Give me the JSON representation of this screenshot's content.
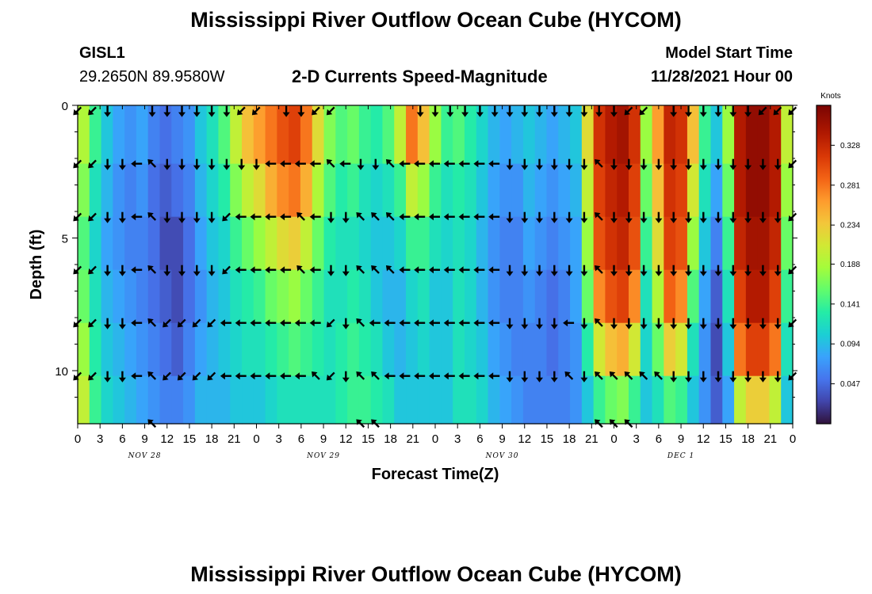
{
  "page": {
    "title": "Mississippi River Outflow Ocean Cube (HYCOM)",
    "title_repeat": "Mississippi River Outflow Ocean Cube (HYCOM)",
    "station_id": "GISL1",
    "coordinates": "29.2650N  89.9580W",
    "model_start_label": "Model Start Time",
    "model_start_value": "11/28/2021 Hour 00"
  },
  "chart_data": {
    "type": "heatmap",
    "title": "2-D Currents Speed-Magnitude",
    "xlabel": "Forecast Time(Z)",
    "ylabel": "Depth (ft)",
    "colorbar_label": "Knots",
    "colorbar_ticks": [
      "0.047",
      "0.094",
      "0.141",
      "0.188",
      "0.234",
      "0.281",
      "0.328"
    ],
    "colorbar_range": [
      0.0,
      0.375
    ],
    "x_tick_labels": [
      "0",
      "3",
      "6",
      "9",
      "12",
      "15",
      "18",
      "21",
      "0",
      "3",
      "6",
      "9",
      "12",
      "15",
      "18",
      "21",
      "0",
      "3",
      "6",
      "9",
      "12",
      "15",
      "18",
      "21",
      "0",
      "3",
      "6",
      "9",
      "12",
      "15",
      "18",
      "21",
      "0"
    ],
    "x_date_labels": [
      {
        "label": "NOV 28",
        "hour": 9
      },
      {
        "label": "NOV 29",
        "hour": 33
      },
      {
        "label": "NOV 30",
        "hour": 57
      },
      {
        "label": "DEC 1",
        "hour": 81
      }
    ],
    "xlim_hours": [
      0,
      96
    ],
    "y_tick_labels": [
      "0",
      "5",
      "10"
    ],
    "ylim_ft": [
      0,
      12
    ],
    "depth_levels_ft": [
      0,
      2.2,
      4.2,
      6.2,
      8.2,
      10.2,
      12
    ],
    "speed_knots": [
      [
        0.19,
        0.17,
        0.15,
        0.16,
        0.18,
        0.2
      ],
      [
        0.14,
        0.12,
        0.11,
        0.12,
        0.13,
        0.14
      ],
      [
        0.1,
        0.09,
        0.08,
        0.09,
        0.1,
        0.11
      ],
      [
        0.08,
        0.07,
        0.07,
        0.08,
        0.09,
        0.1
      ],
      [
        0.07,
        0.06,
        0.06,
        0.07,
        0.08,
        0.09
      ],
      [
        0.08,
        0.07,
        0.06,
        0.06,
        0.07,
        0.08
      ],
      [
        0.06,
        0.05,
        0.05,
        0.05,
        0.06,
        0.07
      ],
      [
        0.05,
        0.04,
        0.03,
        0.04,
        0.05,
        0.06
      ],
      [
        0.06,
        0.05,
        0.03,
        0.03,
        0.04,
        0.06
      ],
      [
        0.07,
        0.06,
        0.05,
        0.05,
        0.06,
        0.07
      ],
      [
        0.1,
        0.09,
        0.08,
        0.07,
        0.08,
        0.09
      ],
      [
        0.12,
        0.11,
        0.1,
        0.09,
        0.09,
        0.09
      ],
      [
        0.15,
        0.13,
        0.11,
        0.1,
        0.1,
        0.09
      ],
      [
        0.2,
        0.17,
        0.14,
        0.12,
        0.11,
        0.1
      ],
      [
        0.24,
        0.2,
        0.16,
        0.13,
        0.12,
        0.1
      ],
      [
        0.26,
        0.22,
        0.18,
        0.14,
        0.12,
        0.1
      ],
      [
        0.28,
        0.25,
        0.2,
        0.16,
        0.13,
        0.11
      ],
      [
        0.3,
        0.27,
        0.22,
        0.17,
        0.14,
        0.12
      ],
      [
        0.31,
        0.28,
        0.23,
        0.18,
        0.15,
        0.12
      ],
      [
        0.28,
        0.25,
        0.2,
        0.16,
        0.14,
        0.12
      ],
      [
        0.22,
        0.19,
        0.16,
        0.14,
        0.13,
        0.12
      ],
      [
        0.17,
        0.15,
        0.13,
        0.12,
        0.12,
        0.12
      ],
      [
        0.15,
        0.13,
        0.12,
        0.12,
        0.13,
        0.13
      ],
      [
        0.16,
        0.14,
        0.12,
        0.13,
        0.14,
        0.14
      ],
      [
        0.14,
        0.12,
        0.11,
        0.12,
        0.13,
        0.14
      ],
      [
        0.13,
        0.11,
        0.1,
        0.1,
        0.12,
        0.13
      ],
      [
        0.15,
        0.12,
        0.1,
        0.09,
        0.1,
        0.12
      ],
      [
        0.2,
        0.14,
        0.11,
        0.09,
        0.09,
        0.1
      ],
      [
        0.28,
        0.2,
        0.14,
        0.11,
        0.1,
        0.1
      ],
      [
        0.24,
        0.18,
        0.14,
        0.12,
        0.11,
        0.1
      ],
      [
        0.18,
        0.14,
        0.12,
        0.1,
        0.1,
        0.1
      ],
      [
        0.14,
        0.12,
        0.11,
        0.1,
        0.1,
        0.1
      ],
      [
        0.15,
        0.13,
        0.12,
        0.12,
        0.12,
        0.12
      ],
      [
        0.13,
        0.12,
        0.11,
        0.11,
        0.11,
        0.12
      ],
      [
        0.11,
        0.1,
        0.09,
        0.09,
        0.1,
        0.11
      ],
      [
        0.09,
        0.08,
        0.07,
        0.07,
        0.08,
        0.09
      ],
      [
        0.08,
        0.07,
        0.06,
        0.06,
        0.07,
        0.08
      ],
      [
        0.09,
        0.07,
        0.06,
        0.06,
        0.06,
        0.07
      ],
      [
        0.1,
        0.09,
        0.08,
        0.07,
        0.06,
        0.06
      ],
      [
        0.09,
        0.08,
        0.07,
        0.06,
        0.06,
        0.06
      ],
      [
        0.08,
        0.07,
        0.06,
        0.05,
        0.05,
        0.06
      ],
      [
        0.09,
        0.08,
        0.07,
        0.06,
        0.06,
        0.06
      ],
      [
        0.1,
        0.09,
        0.08,
        0.08,
        0.07,
        0.07
      ],
      [
        0.22,
        0.2,
        0.18,
        0.16,
        0.13,
        0.1
      ],
      [
        0.32,
        0.31,
        0.3,
        0.27,
        0.21,
        0.14
      ],
      [
        0.34,
        0.33,
        0.32,
        0.3,
        0.24,
        0.16
      ],
      [
        0.35,
        0.34,
        0.33,
        0.31,
        0.25,
        0.17
      ],
      [
        0.32,
        0.31,
        0.3,
        0.27,
        0.21,
        0.14
      ],
      [
        0.18,
        0.16,
        0.14,
        0.12,
        0.11,
        0.1
      ],
      [
        0.26,
        0.24,
        0.22,
        0.19,
        0.16,
        0.12
      ],
      [
        0.33,
        0.32,
        0.31,
        0.29,
        0.23,
        0.15
      ],
      [
        0.32,
        0.31,
        0.3,
        0.27,
        0.21,
        0.14
      ],
      [
        0.24,
        0.21,
        0.18,
        0.15,
        0.12,
        0.1
      ],
      [
        0.14,
        0.12,
        0.1,
        0.08,
        0.07,
        0.07
      ],
      [
        0.1,
        0.08,
        0.06,
        0.04,
        0.03,
        0.04
      ],
      [
        0.18,
        0.16,
        0.14,
        0.12,
        0.1,
        0.08
      ],
      [
        0.34,
        0.34,
        0.33,
        0.31,
        0.28,
        0.2
      ],
      [
        0.36,
        0.36,
        0.35,
        0.34,
        0.31,
        0.23
      ],
      [
        0.36,
        0.36,
        0.35,
        0.34,
        0.31,
        0.23
      ],
      [
        0.34,
        0.34,
        0.33,
        0.31,
        0.28,
        0.2
      ],
      [
        0.2,
        0.18,
        0.16,
        0.14,
        0.12,
        0.1
      ]
    ],
    "arrow_rows_ft": [
      0.2,
      2.2,
      4.2,
      6.2,
      8.2,
      10.2,
      12.0
    ],
    "arrow_times_hours": [
      0,
      2,
      4,
      6,
      8,
      10,
      12,
      14,
      16,
      18,
      20,
      22,
      24,
      26,
      28,
      30,
      32,
      34,
      36,
      38,
      40,
      42,
      44,
      46,
      48,
      50,
      52,
      54,
      56,
      58,
      60,
      62,
      64,
      66,
      68,
      70,
      72,
      74,
      76,
      78,
      80,
      82,
      84,
      86,
      88,
      90,
      92,
      94,
      96
    ],
    "arrow_directions_deg": [
      [
        225,
        225,
        180,
        999,
        999,
        180,
        180,
        180,
        180,
        180,
        180,
        225,
        225,
        999,
        180,
        180,
        225,
        225,
        999,
        999,
        999,
        999,
        999,
        180,
        180,
        180,
        180,
        180,
        180,
        180,
        180,
        180,
        180,
        180,
        180,
        180,
        180,
        225,
        225,
        999,
        180,
        180,
        180,
        180,
        180,
        180,
        225,
        225,
        225
      ],
      [
        225,
        225,
        180,
        180,
        270,
        315,
        180,
        180,
        180,
        180,
        180,
        180,
        180,
        270,
        270,
        270,
        270,
        315,
        270,
        180,
        180,
        315,
        270,
        270,
        270,
        270,
        270,
        270,
        270,
        180,
        180,
        180,
        180,
        180,
        180,
        315,
        180,
        180,
        180,
        180,
        180,
        180,
        180,
        180,
        180,
        180,
        180,
        180,
        225
      ],
      [
        225,
        225,
        180,
        180,
        270,
        315,
        180,
        180,
        180,
        180,
        225,
        270,
        270,
        270,
        270,
        315,
        270,
        180,
        180,
        315,
        315,
        315,
        270,
        270,
        270,
        270,
        270,
        270,
        270,
        180,
        180,
        180,
        180,
        180,
        180,
        315,
        180,
        180,
        180,
        180,
        180,
        180,
        180,
        180,
        180,
        180,
        180,
        180,
        225
      ],
      [
        225,
        225,
        180,
        180,
        270,
        315,
        180,
        180,
        180,
        180,
        225,
        270,
        270,
        270,
        270,
        315,
        270,
        180,
        180,
        315,
        315,
        315,
        270,
        270,
        270,
        270,
        270,
        270,
        270,
        180,
        180,
        180,
        180,
        180,
        180,
        315,
        180,
        180,
        180,
        180,
        180,
        180,
        180,
        180,
        180,
        180,
        180,
        180,
        225
      ],
      [
        225,
        225,
        180,
        180,
        270,
        315,
        225,
        225,
        225,
        225,
        270,
        270,
        270,
        270,
        270,
        270,
        270,
        225,
        180,
        315,
        270,
        270,
        270,
        270,
        270,
        270,
        270,
        270,
        270,
        180,
        180,
        180,
        180,
        270,
        180,
        315,
        180,
        180,
        180,
        180,
        180,
        180,
        180,
        180,
        180,
        180,
        180,
        180,
        225
      ],
      [
        225,
        225,
        180,
        180,
        270,
        315,
        225,
        225,
        225,
        225,
        270,
        270,
        270,
        270,
        270,
        270,
        315,
        225,
        180,
        315,
        315,
        270,
        270,
        270,
        270,
        270,
        270,
        270,
        270,
        180,
        180,
        180,
        180,
        315,
        180,
        315,
        315,
        315,
        315,
        315,
        180,
        180,
        180,
        180,
        180,
        180,
        180,
        180,
        225
      ],
      [
        999,
        999,
        999,
        999,
        999,
        315,
        999,
        999,
        999,
        999,
        999,
        999,
        999,
        999,
        999,
        999,
        999,
        999,
        999,
        315,
        315,
        999,
        999,
        999,
        999,
        999,
        999,
        999,
        999,
        999,
        999,
        999,
        999,
        999,
        999,
        315,
        315,
        315,
        999,
        999,
        999,
        999,
        999,
        999,
        999,
        999,
        999,
        999,
        999
      ]
    ]
  }
}
